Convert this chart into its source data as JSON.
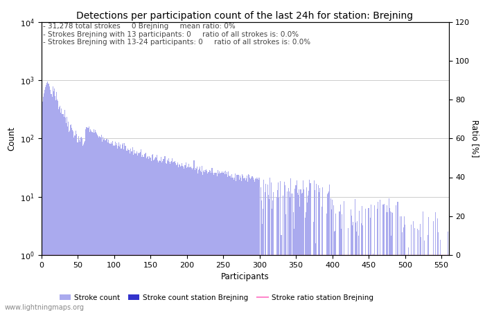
{
  "title": "Detections per participation count of the last 24h for station: Brejning",
  "xlabel": "Participants",
  "ylabel_left": "Count",
  "ylabel_right": "Ratio [%]",
  "annotation_lines": [
    "31,278 total strokes     0 Brejning     mean ratio: 0%",
    "Strokes Brejning with 13 participants: 0     ratio of all strokes is: 0.0%",
    "Strokes Brejning with 13-24 participants: 0     ratio of all strokes is: 0.0%"
  ],
  "bar_color": "#aaaaee",
  "bar_color_station": "#3333cc",
  "line_color": "#ff88cc",
  "xmin": 0,
  "xmax": 560,
  "ylog_min": 1,
  "ylog_max": 10000,
  "ratio_max": 120,
  "watermark": "www.lightningmaps.org",
  "legend_entries": [
    "Stroke count",
    "Stroke count station Brejning",
    "Stroke ratio station Brejning"
  ],
  "title_fontsize": 10,
  "annotation_fontsize": 7.5,
  "axis_label_fontsize": 8.5,
  "tick_fontsize": 8
}
